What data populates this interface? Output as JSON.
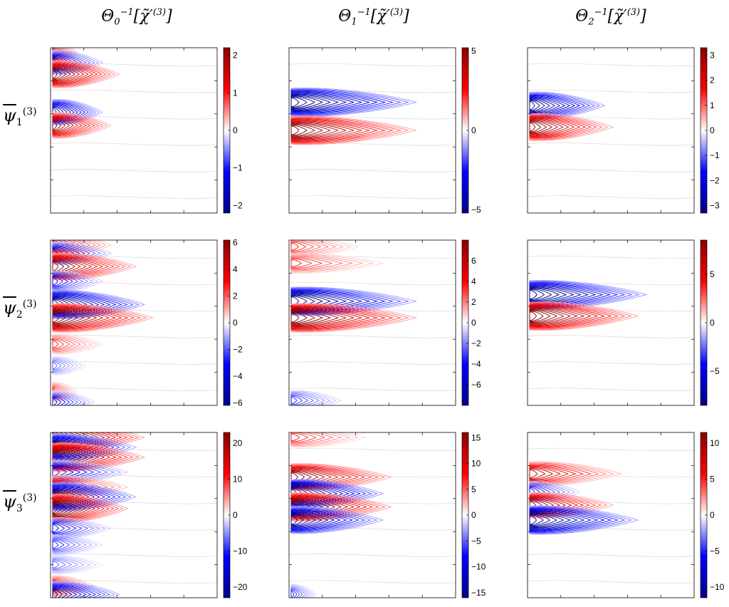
{
  "column_titles": [
    {
      "base": "Θ",
      "sub": "0",
      "sup": "−1",
      "arg": "[χ̃′",
      "argsup": "(3)",
      "close": "]"
    },
    {
      "base": "Θ",
      "sub": "1",
      "sup": "−1",
      "arg": "[χ̃′",
      "argsup": "(3)",
      "close": "]"
    },
    {
      "base": "Θ",
      "sub": "2",
      "sup": "−1",
      "arg": "[χ̃′",
      "argsup": "(3)",
      "close": "]"
    }
  ],
  "row_labels": [
    {
      "base": "ψ",
      "sub": "1",
      "sup": "(3)"
    },
    {
      "base": "ψ",
      "sub": "2",
      "sup": "(3)"
    },
    {
      "base": "ψ",
      "sub": "3",
      "sup": "(3)"
    }
  ],
  "colormap": {
    "neg": "#00008b",
    "mid_neg": "#0000ff",
    "zero": "#ffffff",
    "mid_pos": "#ff0000",
    "pos": "#8b0000"
  },
  "chart_data": [
    {
      "type": "heatmap",
      "row": 1,
      "col": 1,
      "zlim": [
        -2.2,
        2.2
      ],
      "colorbar_ticks": [
        -2,
        -1,
        0,
        1,
        2
      ],
      "features": [
        {
          "sign": 1,
          "y": 0.03,
          "extent": 0.15,
          "amp": 0.6
        },
        {
          "sign": -1,
          "y": 0.09,
          "extent": 0.3,
          "amp": 0.7
        },
        {
          "sign": 1,
          "y": 0.16,
          "extent": 0.4,
          "amp": 0.9
        },
        {
          "sign": -1,
          "y": 0.39,
          "extent": 0.3,
          "amp": 0.8
        },
        {
          "sign": 1,
          "y": 0.47,
          "extent": 0.35,
          "amp": 0.8
        }
      ]
    },
    {
      "type": "heatmap",
      "row": 1,
      "col": 2,
      "zlim": [
        -5.2,
        5.2
      ],
      "colorbar_ticks": [
        -5,
        0,
        5
      ],
      "features": [
        {
          "sign": -1,
          "y": 0.33,
          "extent": 0.75,
          "amp": 1.0
        },
        {
          "sign": 1,
          "y": 0.5,
          "extent": 0.75,
          "amp": 1.0
        }
      ]
    },
    {
      "type": "heatmap",
      "row": 1,
      "col": 3,
      "zlim": [
        -3.3,
        3.3
      ],
      "colorbar_ticks": [
        -3,
        -2,
        -1,
        0,
        1,
        2,
        3
      ],
      "features": [
        {
          "sign": -1,
          "y": 0.35,
          "extent": 0.45,
          "amp": 0.9
        },
        {
          "sign": 1,
          "y": 0.48,
          "extent": 0.5,
          "amp": 0.9
        }
      ]
    },
    {
      "type": "heatmap",
      "row": 2,
      "col": 1,
      "zlim": [
        -6.2,
        6.2
      ],
      "colorbar_ticks": [
        -6,
        -4,
        -2,
        0,
        2,
        4,
        6
      ],
      "features": [
        {
          "sign": 1,
          "y": 0.03,
          "extent": 0.35,
          "amp": 0.6
        },
        {
          "sign": -1,
          "y": 0.08,
          "extent": 0.35,
          "amp": 0.6
        },
        {
          "sign": 1,
          "y": 0.16,
          "extent": 0.5,
          "amp": 0.9
        },
        {
          "sign": -1,
          "y": 0.25,
          "extent": 0.3,
          "amp": 0.5
        },
        {
          "sign": -1,
          "y": 0.39,
          "extent": 0.55,
          "amp": 1.0
        },
        {
          "sign": 1,
          "y": 0.47,
          "extent": 0.6,
          "amp": 1.0
        },
        {
          "sign": 1,
          "y": 0.63,
          "extent": 0.3,
          "amp": 0.4
        },
        {
          "sign": -1,
          "y": 0.76,
          "extent": 0.2,
          "amp": 0.3
        },
        {
          "sign": 1,
          "y": 0.92,
          "extent": 0.15,
          "amp": 0.4
        },
        {
          "sign": -1,
          "y": 0.98,
          "extent": 0.25,
          "amp": 0.5
        }
      ]
    },
    {
      "type": "heatmap",
      "row": 2,
      "col": 2,
      "zlim": [
        -8,
        8
      ],
      "colorbar_ticks": [
        -6,
        -4,
        -2,
        0,
        2,
        4,
        6
      ],
      "features": [
        {
          "sign": 1,
          "y": 0.04,
          "extent": 0.4,
          "amp": 0.4
        },
        {
          "sign": 1,
          "y": 0.14,
          "extent": 0.55,
          "amp": 0.4
        },
        {
          "sign": -1,
          "y": 0.37,
          "extent": 0.75,
          "amp": 1.0
        },
        {
          "sign": 1,
          "y": 0.47,
          "extent": 0.75,
          "amp": 1.0
        },
        {
          "sign": -1,
          "y": 0.97,
          "extent": 0.3,
          "amp": 0.4
        }
      ]
    },
    {
      "type": "heatmap",
      "row": 2,
      "col": 3,
      "zlim": [
        -8.5,
        8.5
      ],
      "colorbar_ticks": [
        -5,
        0,
        5
      ],
      "features": [
        {
          "sign": -1,
          "y": 0.33,
          "extent": 0.7,
          "amp": 1.0
        },
        {
          "sign": 1,
          "y": 0.46,
          "extent": 0.65,
          "amp": 1.0
        }
      ]
    },
    {
      "type": "heatmap",
      "row": 3,
      "col": 1,
      "zlim": [
        -23,
        23
      ],
      "colorbar_ticks": [
        -20,
        -10,
        0,
        10,
        20
      ],
      "features": [
        {
          "sign": 1,
          "y": 0.03,
          "extent": 0.55,
          "amp": 1.0
        },
        {
          "sign": -1,
          "y": 0.09,
          "extent": 0.5,
          "amp": 0.9
        },
        {
          "sign": 1,
          "y": 0.15,
          "extent": 0.55,
          "amp": 1.0
        },
        {
          "sign": -1,
          "y": 0.24,
          "extent": 0.45,
          "amp": 0.6
        },
        {
          "sign": 1,
          "y": 0.33,
          "extent": 0.45,
          "amp": 0.6
        },
        {
          "sign": -1,
          "y": 0.39,
          "extent": 0.5,
          "amp": 1.0
        },
        {
          "sign": 1,
          "y": 0.46,
          "extent": 0.45,
          "amp": 1.0
        },
        {
          "sign": -1,
          "y": 0.58,
          "extent": 0.35,
          "amp": 0.5
        },
        {
          "sign": -1,
          "y": 0.68,
          "extent": 0.3,
          "amp": 0.4
        },
        {
          "sign": -1,
          "y": 0.8,
          "extent": 0.3,
          "amp": 0.3
        },
        {
          "sign": 1,
          "y": 0.93,
          "extent": 0.25,
          "amp": 0.5
        },
        {
          "sign": -1,
          "y": 0.98,
          "extent": 0.4,
          "amp": 0.8
        }
      ]
    },
    {
      "type": "heatmap",
      "row": 3,
      "col": 2,
      "zlim": [
        -16,
        16
      ],
      "colorbar_ticks": [
        -15,
        -10,
        -5,
        0,
        5,
        10,
        15
      ],
      "features": [
        {
          "sign": 1,
          "y": 0.03,
          "extent": 0.45,
          "amp": 0.4
        },
        {
          "sign": 1,
          "y": 0.27,
          "extent": 0.6,
          "amp": 0.9
        },
        {
          "sign": -1,
          "y": 0.37,
          "extent": 0.55,
          "amp": 1.0
        },
        {
          "sign": 1,
          "y": 0.45,
          "extent": 0.6,
          "amp": 1.0
        },
        {
          "sign": -1,
          "y": 0.53,
          "extent": 0.55,
          "amp": 0.9
        },
        {
          "sign": -1,
          "y": 0.98,
          "extent": 0.15,
          "amp": 0.4
        }
      ]
    },
    {
      "type": "heatmap",
      "row": 3,
      "col": 3,
      "zlim": [
        -11.5,
        11.5
      ],
      "colorbar_ticks": [
        -10,
        -5,
        0,
        5,
        10
      ],
      "features": [
        {
          "sign": 1,
          "y": 0.25,
          "extent": 0.55,
          "amp": 0.7
        },
        {
          "sign": -1,
          "y": 0.36,
          "extent": 0.3,
          "amp": 0.5
        },
        {
          "sign": 1,
          "y": 0.44,
          "extent": 0.5,
          "amp": 0.8
        },
        {
          "sign": -1,
          "y": 0.53,
          "extent": 0.65,
          "amp": 1.0
        }
      ]
    }
  ]
}
